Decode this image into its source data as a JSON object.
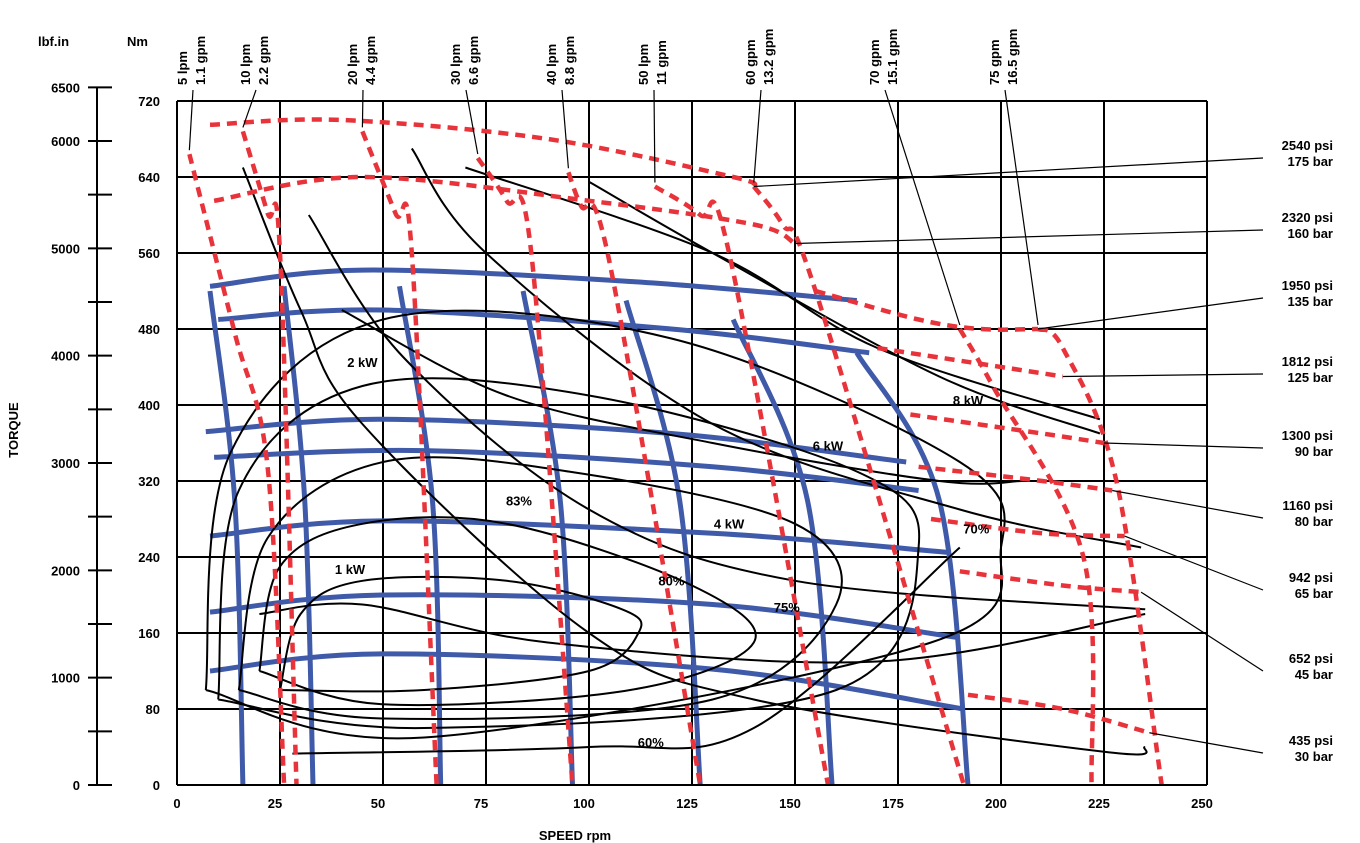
{
  "chart_data": {
    "type": "line",
    "title": "",
    "xlabel": "SPEED rpm",
    "ylabel": "TORQUE",
    "left_axis_unit": "lbf.in",
    "right_axis_unit": "Nm",
    "xlim": [
      0,
      250
    ],
    "ylim_nm": [
      0,
      720
    ],
    "grid": true,
    "x_ticks": [
      "0",
      "25",
      "50",
      "75",
      "100",
      "125",
      "150",
      "175",
      "200",
      "225",
      "250"
    ],
    "x_tick_values": [
      0,
      25,
      50,
      75,
      100,
      125,
      150,
      175,
      200,
      225,
      250
    ],
    "nm_ticks": [
      "0",
      "80",
      "160",
      "240",
      "320",
      "400",
      "480",
      "560",
      "640",
      "720"
    ],
    "nm_tick_values": [
      0,
      80,
      160,
      240,
      320,
      400,
      480,
      560,
      640,
      720
    ],
    "lbf_ticks": [
      "0",
      "1000",
      "2000",
      "3000",
      "4000",
      "5000",
      "6000",
      "6500"
    ],
    "lbf_tick_values": [
      0,
      1000,
      2000,
      3000,
      4000,
      5000,
      6000,
      6500
    ],
    "lbf_minor_values": [
      500,
      1500,
      2500,
      3500,
      4500,
      5500
    ],
    "flow_lines": [
      {
        "lpm": "5  lpm",
        "gpm": "1.1 gpm",
        "points": [
          [
            3,
            664
          ],
          [
            14,
            476
          ],
          [
            22,
            335
          ],
          [
            26,
            0
          ]
        ]
      },
      {
        "lpm": "10  lpm",
        "gpm": "2.2 gpm",
        "points": [
          [
            16,
            688
          ],
          [
            22,
            602
          ],
          [
            25,
            560
          ],
          [
            29,
            0
          ]
        ]
      },
      {
        "lpm": "20  lpm",
        "gpm": "4.4 gpm",
        "points": [
          [
            45,
            688
          ],
          [
            53,
            602
          ],
          [
            57,
            560
          ],
          [
            63,
            0
          ]
        ]
      },
      {
        "lpm": "30  lpm",
        "gpm": "6.6 gpm",
        "points": [
          [
            73,
            660
          ],
          [
            80,
            615
          ],
          [
            86,
            560
          ],
          [
            96,
            0
          ]
        ]
      },
      {
        "lpm": "40  lpm",
        "gpm": "8.8 gpm",
        "points": [
          [
            95,
            645
          ],
          [
            98,
            610
          ],
          [
            105,
            550
          ],
          [
            127,
            0
          ]
        ]
      },
      {
        "lpm": "50  lpm",
        "gpm": "11  gpm",
        "points": [
          [
            116,
            630
          ],
          [
            127,
            600
          ],
          [
            134,
            560
          ],
          [
            158,
            0
          ]
        ]
      },
      {
        "lpm": "60 gpm",
        "gpm": "13.2 gpm",
        "points": [
          [
            140,
            630
          ],
          [
            147,
            590
          ],
          [
            155,
            520
          ],
          [
            191,
            0
          ]
        ]
      },
      {
        "lpm": "70 gpm",
        "gpm": "15.1 gpm",
        "points": [
          [
            190,
            480
          ],
          [
            198,
            420
          ],
          [
            220,
            240
          ],
          [
            222,
            0
          ]
        ]
      },
      {
        "lpm": "75 gpm",
        "gpm": "16.5 gpm",
        "points": [
          [
            209,
            480
          ],
          [
            215,
            460
          ],
          [
            228,
            320
          ],
          [
            239,
            0
          ]
        ]
      }
    ],
    "pressure_lines": [
      {
        "psi": "2540  psi",
        "bar": "175 bar",
        "points": [
          [
            8,
            695
          ],
          [
            40,
            700
          ],
          [
            90,
            680
          ],
          [
            135,
            640
          ],
          [
            140,
            630
          ]
        ]
      },
      {
        "psi": "2320  psi",
        "bar": "160 bar",
        "points": [
          [
            9,
            615
          ],
          [
            45,
            640
          ],
          [
            100,
            615
          ],
          [
            140,
            590
          ],
          [
            150,
            570
          ]
        ]
      },
      {
        "psi": "1950  psi",
        "bar": "135  bar",
        "points": [
          [
            155,
            520
          ],
          [
            180,
            490
          ],
          [
            195,
            480
          ],
          [
            209,
            480
          ]
        ]
      },
      {
        "psi": "1812  psi",
        "bar": "125  bar",
        "points": [
          [
            170,
            460
          ],
          [
            200,
            440
          ],
          [
            215,
            430
          ]
        ]
      },
      {
        "psi": "1300  psi",
        "bar": "90  bar",
        "points": [
          [
            178,
            390
          ],
          [
            210,
            370
          ],
          [
            225,
            360
          ]
        ]
      },
      {
        "psi": "1160  psi",
        "bar": "80  bar",
        "points": [
          [
            180,
            335
          ],
          [
            210,
            320
          ],
          [
            227,
            310
          ]
        ]
      },
      {
        "psi": "942  psi",
        "bar": "65  bar",
        "points": [
          [
            183,
            280
          ],
          [
            210,
            265
          ],
          [
            230,
            262
          ]
        ]
      },
      {
        "psi": "652  psi",
        "bar": "45  bar",
        "points": [
          [
            190,
            225
          ],
          [
            215,
            210
          ],
          [
            234,
            203
          ]
        ]
      },
      {
        "psi": "435  psi",
        "bar": "30  bar",
        "points": [
          [
            192,
            95
          ],
          [
            215,
            80
          ],
          [
            236,
            55
          ]
        ]
      }
    ],
    "power_contours": [
      {
        "label": "1 kW",
        "label_xy": [
          42,
          222
        ]
      },
      {
        "label": "2 kW",
        "label_xy": [
          45,
          440
        ]
      },
      {
        "label": "4 kW",
        "label_xy": [
          134,
          270
        ]
      },
      {
        "label": "6 kW",
        "label_xy": [
          158,
          352
        ]
      },
      {
        "label": "8 kW",
        "label_xy": [
          192,
          400
        ]
      }
    ],
    "efficiency_contours": [
      {
        "label": "83%",
        "label_xy": [
          83,
          294
        ]
      },
      {
        "label": "80%",
        "label_xy": [
          120,
          210
        ]
      },
      {
        "label": "75%",
        "label_xy": [
          148,
          182
        ]
      },
      {
        "label": "70%",
        "label_xy": [
          194,
          265
        ]
      },
      {
        "label": "60%",
        "label_xy": [
          115,
          40
        ]
      }
    ],
    "blue_grid_note": "",
    "colors": {
      "flow": "#e8333a",
      "pressure": "#e8333a",
      "grid_blue": "#3f5aa8",
      "contour": "#000000",
      "gridline": "#000000"
    }
  }
}
